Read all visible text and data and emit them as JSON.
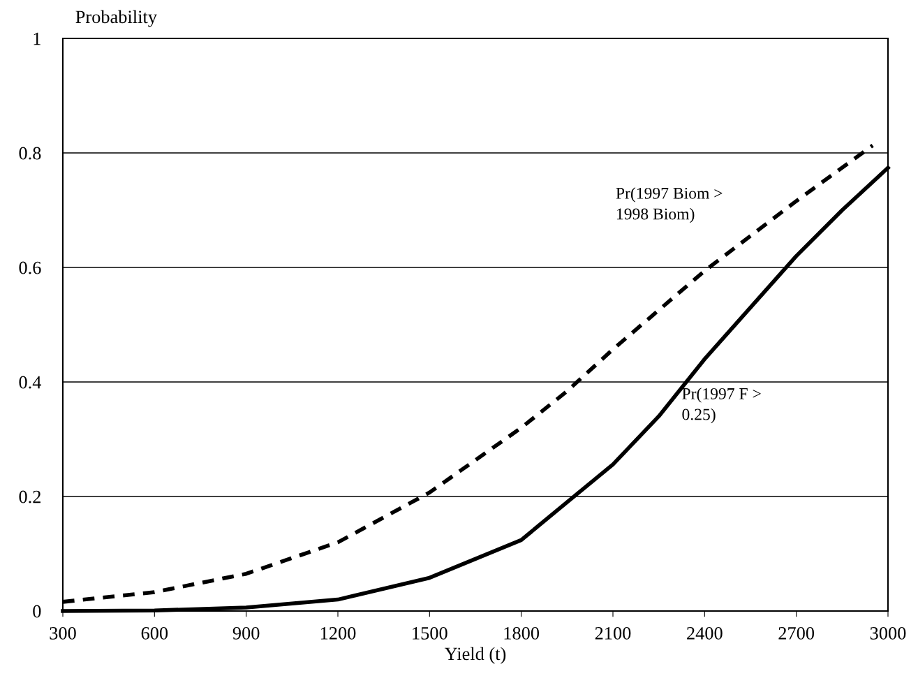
{
  "chart_data": {
    "type": "line",
    "xlabel": "Yield (t)",
    "ylabel": "Probability",
    "xlim": [
      300,
      3000
    ],
    "xticks": [
      300,
      600,
      900,
      1200,
      1500,
      1800,
      2100,
      2400,
      2700,
      3000
    ],
    "ylim": [
      0,
      1
    ],
    "yticks": [
      0,
      0.2,
      0.4,
      0.6,
      0.8,
      1
    ],
    "grid": "y",
    "legend": false,
    "series": [
      {
        "name": "Pr(1997 Biom >\n1998 Biom)",
        "color": "#000000",
        "line_style": "dashed",
        "x": [
          300,
          600,
          900,
          1200,
          1500,
          1800,
          1950,
          2100,
          2400,
          2700,
          2950
        ],
        "values": [
          0.016,
          0.033,
          0.065,
          0.12,
          0.207,
          0.32,
          0.384,
          0.457,
          0.594,
          0.716,
          0.813
        ]
      },
      {
        "name": "Pr(1997 F >\n0.25)",
        "color": "#000000",
        "line_style": "solid",
        "x": [
          300,
          600,
          900,
          1200,
          1500,
          1800,
          1950,
          2100,
          2250,
          2400,
          2550,
          2700,
          2850,
          3000
        ],
        "values": [
          0,
          0.001,
          0.006,
          0.02,
          0.058,
          0.124,
          0.19,
          0.256,
          0.34,
          0.44,
          0.53,
          0.62,
          0.7,
          0.774
        ]
      }
    ]
  }
}
